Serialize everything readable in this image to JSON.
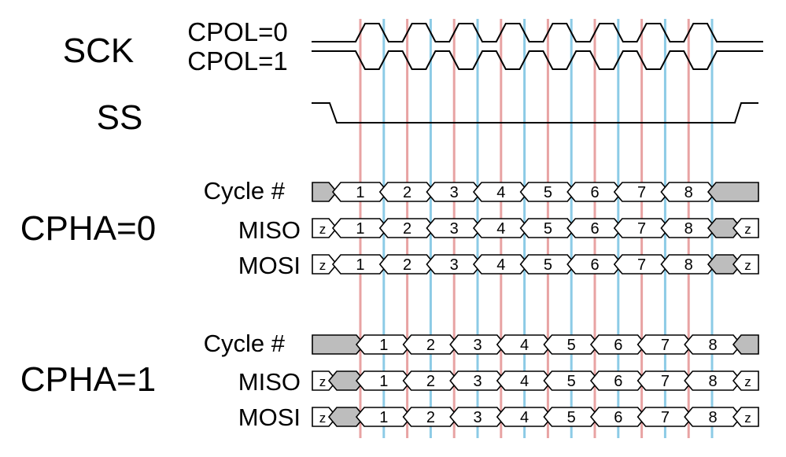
{
  "labels": {
    "sck": "SCK",
    "cpol0": "CPOL=0",
    "cpol1": "CPOL=1",
    "ss": "SS",
    "cpha0": "CPHA=0",
    "cpha1": "CPHA=1",
    "cycle": "Cycle #",
    "miso": "MISO",
    "mosi": "MOSI"
  },
  "cycles": [
    "1",
    "2",
    "3",
    "4",
    "5",
    "6",
    "7",
    "8"
  ],
  "hiz_label": "z",
  "colors": {
    "leading_edge": "#e8a3a3",
    "trailing_edge": "#8ccbe6",
    "fill_idle": "#bdbdbd",
    "line": "#000000"
  }
}
